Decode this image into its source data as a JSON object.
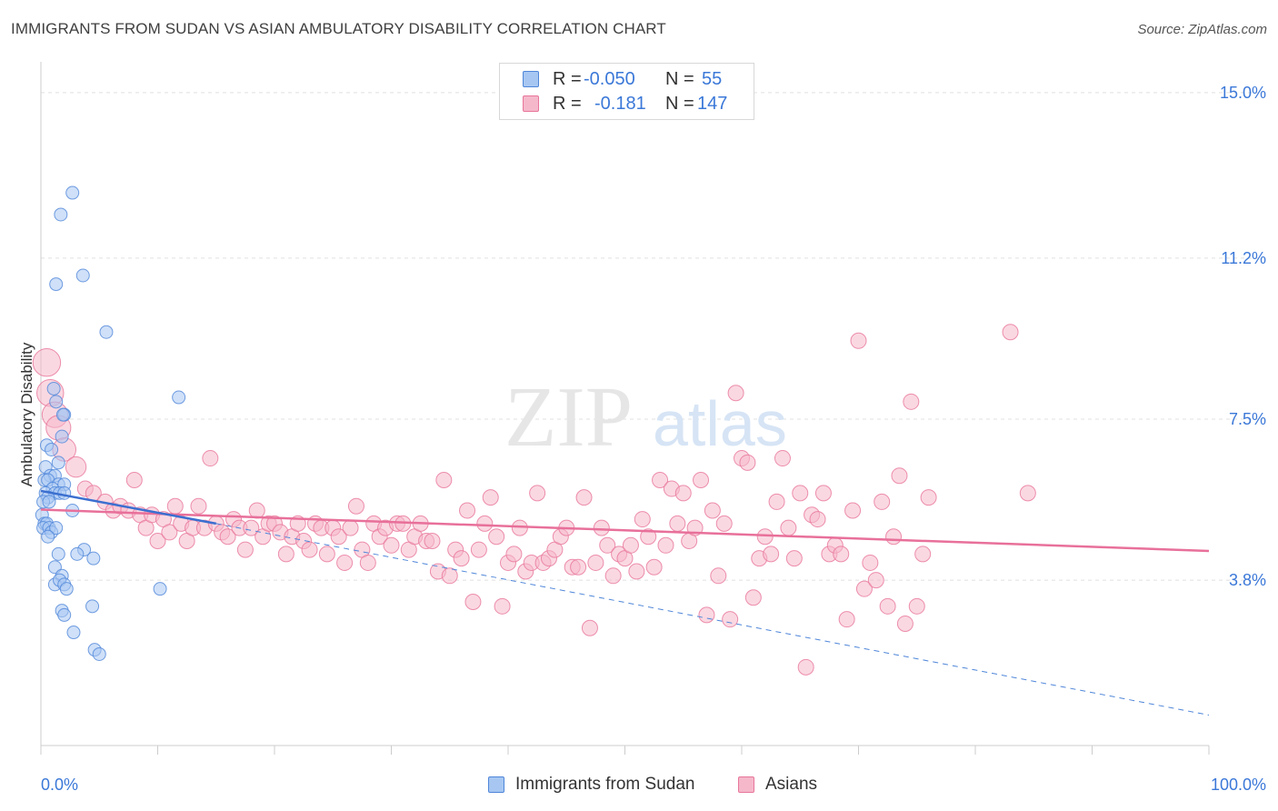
{
  "title": "IMMIGRANTS FROM SUDAN VS ASIAN AMBULATORY DISABILITY CORRELATION CHART",
  "source": "Source: ZipAtlas.com",
  "watermark": {
    "zip": "ZIP",
    "atlas": "atlas"
  },
  "legend": {
    "rows": [
      {
        "r_label": "R =",
        "r_value": "-0.050",
        "n_label": "N =",
        "n_value": "55",
        "color": "#a7c7f2"
      },
      {
        "r_label": "R =",
        "r_value": "-0.181",
        "n_label": "N =",
        "n_value": "147",
        "color": "#f5b8cb"
      }
    ]
  },
  "bottom_legend": [
    {
      "label": "Immigrants from Sudan",
      "color": "#a7c7f2"
    },
    {
      "label": "Asians",
      "color": "#f5b8cb"
    }
  ],
  "chart_data": {
    "type": "scatter",
    "ylabel": "Ambulatory Disability",
    "xlim": [
      0,
      100
    ],
    "ylim": [
      0,
      15.5
    ],
    "x_tick_labels": [
      "0.0%",
      "100.0%"
    ],
    "y_ticks": [
      {
        "value": 3.8,
        "label": "3.8%"
      },
      {
        "value": 7.5,
        "label": "7.5%"
      },
      {
        "value": 11.2,
        "label": "11.2%"
      },
      {
        "value": 15.0,
        "label": "15.0%"
      }
    ],
    "grid": true,
    "series": [
      {
        "name": "Immigrants from Sudan",
        "color": "#a7c7f2",
        "stroke": "#4f86d9",
        "points": [
          [
            2.7,
            12.7
          ],
          [
            1.7,
            12.2
          ],
          [
            3.6,
            10.8
          ],
          [
            1.3,
            10.6
          ],
          [
            5.6,
            9.5
          ],
          [
            11.8,
            8.0
          ],
          [
            1.1,
            8.2
          ],
          [
            1.3,
            7.9
          ],
          [
            2.0,
            7.6
          ],
          [
            1.8,
            7.1
          ],
          [
            0.5,
            6.9
          ],
          [
            0.9,
            6.8
          ],
          [
            0.4,
            6.4
          ],
          [
            1.5,
            6.5
          ],
          [
            0.8,
            6.2
          ],
          [
            1.2,
            6.2
          ],
          [
            0.3,
            6.1
          ],
          [
            0.6,
            6.1
          ],
          [
            1.5,
            6.0
          ],
          [
            1.0,
            5.9
          ],
          [
            2.0,
            6.0
          ],
          [
            0.4,
            5.8
          ],
          [
            1.2,
            5.8
          ],
          [
            1.6,
            5.8
          ],
          [
            2.0,
            5.8
          ],
          [
            0.6,
            5.7
          ],
          [
            0.2,
            5.6
          ],
          [
            2.7,
            5.4
          ],
          [
            0.1,
            5.3
          ],
          [
            0.3,
            5.1
          ],
          [
            0.5,
            5.1
          ],
          [
            0.2,
            5.0
          ],
          [
            0.7,
            5.0
          ],
          [
            0.9,
            4.9
          ],
          [
            1.3,
            5.0
          ],
          [
            0.6,
            4.8
          ],
          [
            3.7,
            4.5
          ],
          [
            3.1,
            4.4
          ],
          [
            4.5,
            4.3
          ],
          [
            1.5,
            4.4
          ],
          [
            1.2,
            4.1
          ],
          [
            1.8,
            3.9
          ],
          [
            1.2,
            3.7
          ],
          [
            1.6,
            3.8
          ],
          [
            2.0,
            3.7
          ],
          [
            2.2,
            3.6
          ],
          [
            10.2,
            3.6
          ],
          [
            4.4,
            3.2
          ],
          [
            1.8,
            3.1
          ],
          [
            2.0,
            3.0
          ],
          [
            2.8,
            2.6
          ],
          [
            4.6,
            2.2
          ],
          [
            5.0,
            2.1
          ],
          [
            0.7,
            5.6
          ],
          [
            1.9,
            7.6
          ]
        ],
        "trend": {
          "x": [
            0,
            15
          ],
          "y": [
            5.85,
            5.1
          ]
        },
        "trend_ext": {
          "x": [
            15,
            100
          ],
          "y": [
            5.1,
            0.7
          ]
        }
      },
      {
        "name": "Asians",
        "color": "#f5b8cb",
        "stroke": "#e8769a",
        "points": [
          [
            0.5,
            8.8
          ],
          [
            0.8,
            8.1
          ],
          [
            1.2,
            7.6
          ],
          [
            1.5,
            7.3
          ],
          [
            2.0,
            6.8
          ],
          [
            3.0,
            6.4
          ],
          [
            3.8,
            5.9
          ],
          [
            4.5,
            5.8
          ],
          [
            5.5,
            5.6
          ],
          [
            6.2,
            5.4
          ],
          [
            6.8,
            5.5
          ],
          [
            7.5,
            5.4
          ],
          [
            8.0,
            6.1
          ],
          [
            8.5,
            5.3
          ],
          [
            9.0,
            5.0
          ],
          [
            9.5,
            5.3
          ],
          [
            10.0,
            4.7
          ],
          [
            10.5,
            5.2
          ],
          [
            11.0,
            4.9
          ],
          [
            11.5,
            5.5
          ],
          [
            12.0,
            5.1
          ],
          [
            12.5,
            4.7
          ],
          [
            13.0,
            5.0
          ],
          [
            13.5,
            5.5
          ],
          [
            14.0,
            5.0
          ],
          [
            14.5,
            6.6
          ],
          [
            15.0,
            5.1
          ],
          [
            15.5,
            4.9
          ],
          [
            16.0,
            4.8
          ],
          [
            16.5,
            5.2
          ],
          [
            17.0,
            5.0
          ],
          [
            17.5,
            4.5
          ],
          [
            18.0,
            5.0
          ],
          [
            18.5,
            5.4
          ],
          [
            19.0,
            4.8
          ],
          [
            19.5,
            5.1
          ],
          [
            20.0,
            5.1
          ],
          [
            20.5,
            4.9
          ],
          [
            21.0,
            4.4
          ],
          [
            21.5,
            4.8
          ],
          [
            22.0,
            5.1
          ],
          [
            22.5,
            4.7
          ],
          [
            23.0,
            4.5
          ],
          [
            23.5,
            5.1
          ],
          [
            24.0,
            5.0
          ],
          [
            24.5,
            4.4
          ],
          [
            25.0,
            5.0
          ],
          [
            25.5,
            4.8
          ],
          [
            26.0,
            4.2
          ],
          [
            26.5,
            5.0
          ],
          [
            27.0,
            5.5
          ],
          [
            27.5,
            4.5
          ],
          [
            28.0,
            4.2
          ],
          [
            28.5,
            5.1
          ],
          [
            29.0,
            4.8
          ],
          [
            29.5,
            5.0
          ],
          [
            30.0,
            4.6
          ],
          [
            30.5,
            5.1
          ],
          [
            31.0,
            5.1
          ],
          [
            31.5,
            4.5
          ],
          [
            32.0,
            4.8
          ],
          [
            32.5,
            5.1
          ],
          [
            33.0,
            4.7
          ],
          [
            33.5,
            4.7
          ],
          [
            34.0,
            4.0
          ],
          [
            34.5,
            6.1
          ],
          [
            35.0,
            3.9
          ],
          [
            35.5,
            4.5
          ],
          [
            36.0,
            4.3
          ],
          [
            36.5,
            5.4
          ],
          [
            37.0,
            3.3
          ],
          [
            37.5,
            4.5
          ],
          [
            38.0,
            5.1
          ],
          [
            38.5,
            5.7
          ],
          [
            39.0,
            4.8
          ],
          [
            39.5,
            3.2
          ],
          [
            40.0,
            4.2
          ],
          [
            40.5,
            4.4
          ],
          [
            41.0,
            5.0
          ],
          [
            41.5,
            4.0
          ],
          [
            42.0,
            4.2
          ],
          [
            42.5,
            5.8
          ],
          [
            43.0,
            4.2
          ],
          [
            43.5,
            4.3
          ],
          [
            44.0,
            4.5
          ],
          [
            44.5,
            4.8
          ],
          [
            45.0,
            5.0
          ],
          [
            45.5,
            4.1
          ],
          [
            46.0,
            4.1
          ],
          [
            46.5,
            5.7
          ],
          [
            47.0,
            2.7
          ],
          [
            47.5,
            4.2
          ],
          [
            48.0,
            5.0
          ],
          [
            48.5,
            4.6
          ],
          [
            49.0,
            3.9
          ],
          [
            49.5,
            4.4
          ],
          [
            50.0,
            4.3
          ],
          [
            50.5,
            4.6
          ],
          [
            51.0,
            4.0
          ],
          [
            51.5,
            5.2
          ],
          [
            52.0,
            4.8
          ],
          [
            52.5,
            4.1
          ],
          [
            53.0,
            6.1
          ],
          [
            53.5,
            4.6
          ],
          [
            54.0,
            5.9
          ],
          [
            54.5,
            5.1
          ],
          [
            55.0,
            5.8
          ],
          [
            55.5,
            4.7
          ],
          [
            56.0,
            5.0
          ],
          [
            56.5,
            6.1
          ],
          [
            57.0,
            3.0
          ],
          [
            57.5,
            5.4
          ],
          [
            58.0,
            3.9
          ],
          [
            58.5,
            5.1
          ],
          [
            59.0,
            2.9
          ],
          [
            59.5,
            8.1
          ],
          [
            60.0,
            6.6
          ],
          [
            60.5,
            6.5
          ],
          [
            61.0,
            3.4
          ],
          [
            61.5,
            4.3
          ],
          [
            62.0,
            4.8
          ],
          [
            62.5,
            4.4
          ],
          [
            63.0,
            5.6
          ],
          [
            63.5,
            6.6
          ],
          [
            64.0,
            5.0
          ],
          [
            64.5,
            4.3
          ],
          [
            65.0,
            5.8
          ],
          [
            65.5,
            1.8
          ],
          [
            66.0,
            5.3
          ],
          [
            66.5,
            5.2
          ],
          [
            67.0,
            5.8
          ],
          [
            67.5,
            4.4
          ],
          [
            68.0,
            4.6
          ],
          [
            68.5,
            4.4
          ],
          [
            69.0,
            2.9
          ],
          [
            69.5,
            5.4
          ],
          [
            70.0,
            9.3
          ],
          [
            70.5,
            3.6
          ],
          [
            71.0,
            4.2
          ],
          [
            71.5,
            3.8
          ],
          [
            72.0,
            5.6
          ],
          [
            72.5,
            3.2
          ],
          [
            73.0,
            4.8
          ],
          [
            73.5,
            6.2
          ],
          [
            74.0,
            2.8
          ],
          [
            74.5,
            7.9
          ],
          [
            75.0,
            3.2
          ],
          [
            75.5,
            4.4
          ],
          [
            76.0,
            5.7
          ],
          [
            83.0,
            9.5
          ],
          [
            84.5,
            5.8
          ]
        ],
        "trend": {
          "x": [
            0,
            100
          ],
          "y": [
            5.42,
            4.47
          ]
        }
      }
    ]
  }
}
